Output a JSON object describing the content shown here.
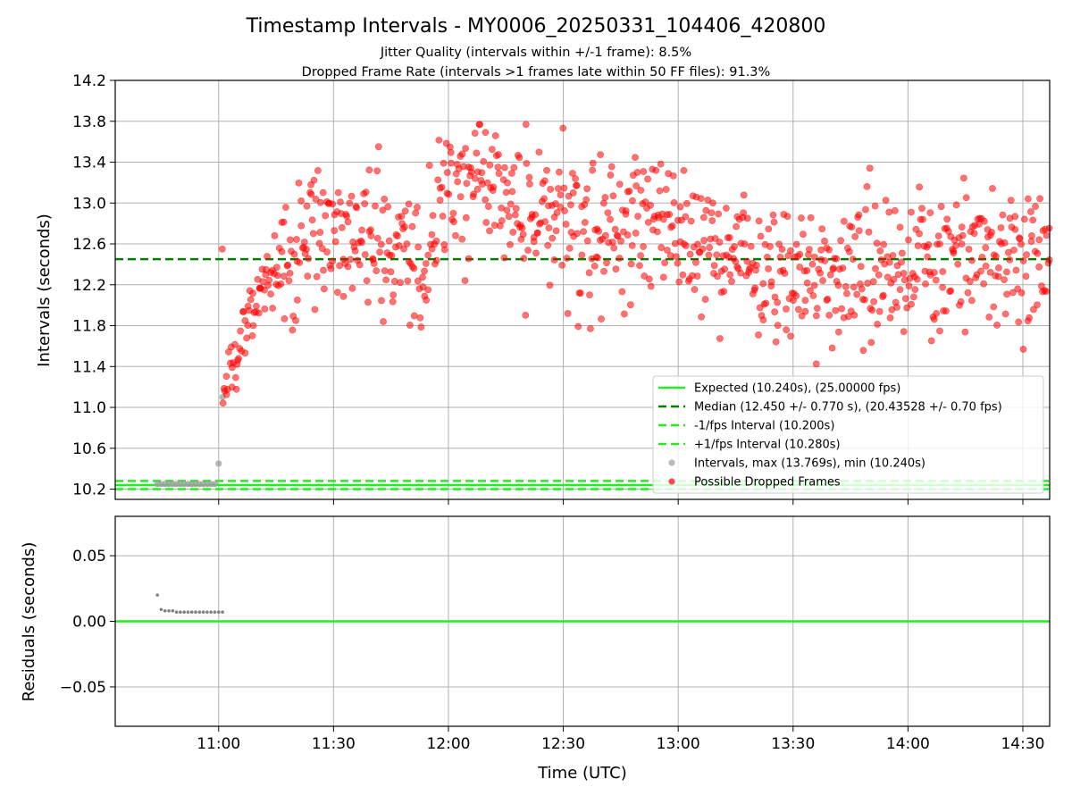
{
  "chart_data": [
    {
      "type": "scatter",
      "title": "Timestamp Intervals - MY0006_20250331_104406_420800",
      "subtitle_lines": [
        "Jitter Quality (intervals within +/-1 frame): 8.5%",
        "Dropped Frame Rate (intervals >1 frames late within 50 FF files): 91.3%"
      ],
      "xlabel": "",
      "ylabel": "Intervals (seconds)",
      "x_unit": "time (UTC)",
      "xlim": [
        "10:33",
        "14:37"
      ],
      "ylim": [
        10.1,
        14.2
      ],
      "y_ticks": [
        "10.2",
        "10.6",
        "11.0",
        "11.4",
        "11.8",
        "12.2",
        "12.6",
        "13.0",
        "13.4",
        "13.8",
        "14.2"
      ],
      "grid": true,
      "legend_position": "lower right",
      "reference_lines": [
        {
          "name": "Expected (10.240s), (25.00000 fps)",
          "y": 10.24,
          "style": "solid",
          "color": "#22ee22"
        },
        {
          "name": "Median (12.450 +/- 0.770 s), (20.43528 +/- 0.70 fps)",
          "y": 12.45,
          "style": "dashed",
          "color": "#008000"
        },
        {
          "name": "-1/fps Interval (10.200s)",
          "y": 10.2,
          "style": "dashed",
          "color": "#22ee22"
        },
        {
          "name": "+1/fps Interval (10.280s)",
          "y": 10.28,
          "style": "dashed",
          "color": "#22ee22"
        }
      ],
      "series": [
        {
          "name": "Intervals, max (13.769s), min (10.240s)",
          "color": "#9e9e9e",
          "points": [
            [
              "10:44",
              10.25
            ],
            [
              "10:45",
              10.25
            ],
            [
              "10:46",
              10.25
            ],
            [
              "10:47",
              10.25
            ],
            [
              "10:48",
              10.25
            ],
            [
              "10:49",
              10.25
            ],
            [
              "10:50",
              10.25
            ],
            [
              "10:51",
              10.25
            ],
            [
              "10:52",
              10.25
            ],
            [
              "10:53",
              10.25
            ],
            [
              "10:54",
              10.25
            ],
            [
              "10:55",
              10.25
            ],
            [
              "10:56",
              10.25
            ],
            [
              "10:57",
              10.25
            ],
            [
              "10:58",
              10.25
            ],
            [
              "10:59",
              10.25
            ],
            [
              "11:00",
              10.45
            ],
            [
              "11:01",
              11.1
            ]
          ]
        },
        {
          "name": "Possible Dropped Frames",
          "color": "#ff0000",
          "trend": [
            [
              "11:01",
              10.95
            ],
            [
              "11:03",
              11.4
            ],
            [
              "11:05",
              11.6
            ],
            [
              "11:08",
              11.9
            ],
            [
              "11:12",
              12.15
            ],
            [
              "11:18",
              12.4
            ],
            [
              "11:25",
              12.65
            ],
            [
              "11:35",
              12.75
            ],
            [
              "11:45",
              12.55
            ],
            [
              "11:55",
              12.45
            ],
            [
              "12:00",
              13.2
            ],
            [
              "12:10",
              13.15
            ],
            [
              "12:20",
              12.9
            ],
            [
              "12:35",
              12.75
            ],
            [
              "12:50",
              12.7
            ],
            [
              "13:05",
              12.65
            ],
            [
              "13:20",
              12.4
            ],
            [
              "13:35",
              12.2
            ],
            [
              "13:50",
              12.25
            ],
            [
              "14:05",
              12.45
            ],
            [
              "14:20",
              12.5
            ],
            [
              "14:37",
              12.4
            ]
          ],
          "spread": 0.35,
          "count": 900,
          "max": 13.769
        }
      ]
    },
    {
      "type": "scatter",
      "title": "",
      "xlabel": "Time (UTC)",
      "ylabel": "Residuals (seconds)",
      "xlim": [
        "10:33",
        "14:37"
      ],
      "ylim": [
        -0.08,
        0.08
      ],
      "y_ticks": [
        "−0.05",
        "0.00",
        "0.05"
      ],
      "x_ticks": [
        "11:00",
        "11:30",
        "12:00",
        "12:30",
        "13:00",
        "13:30",
        "14:00",
        "14:30"
      ],
      "grid": true,
      "reference_lines": [
        {
          "name": "zero",
          "y": 0.0,
          "color": "#22ee22"
        }
      ],
      "series": [
        {
          "name": "residuals",
          "color": "#808080",
          "points": [
            [
              "10:44",
              0.02
            ],
            [
              "10:45",
              0.009
            ],
            [
              "10:46",
              0.008
            ],
            [
              "10:47",
              0.008
            ],
            [
              "10:48",
              0.008
            ],
            [
              "10:49",
              0.007
            ],
            [
              "10:50",
              0.007
            ],
            [
              "10:51",
              0.007
            ],
            [
              "10:52",
              0.007
            ],
            [
              "10:53",
              0.007
            ],
            [
              "10:54",
              0.007
            ],
            [
              "10:55",
              0.007
            ],
            [
              "10:56",
              0.007
            ],
            [
              "10:57",
              0.007
            ],
            [
              "10:58",
              0.007
            ],
            [
              "10:59",
              0.007
            ],
            [
              "11:00",
              0.007
            ],
            [
              "11:01",
              0.007
            ]
          ]
        }
      ]
    }
  ]
}
